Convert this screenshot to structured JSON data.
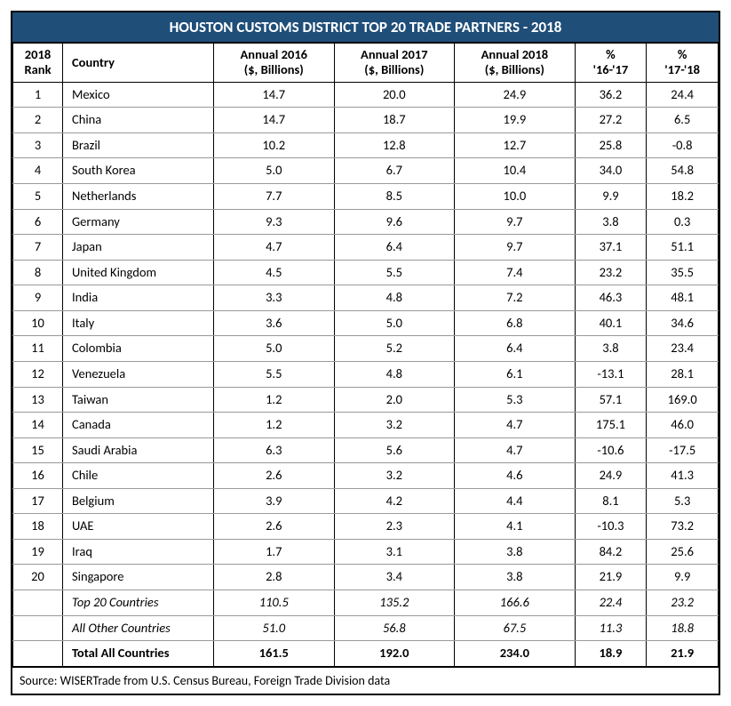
{
  "title": "HOUSTON CUSTOMS DISTRICT TOP 20 TRADE PARTNERS - 2018",
  "columns": {
    "rank_l1": "2018",
    "rank_l2": "Rank",
    "country": "Country",
    "a2016_l1": "Annual 2016",
    "a2016_l2": "($, Billions)",
    "a2017_l1": "Annual 2017",
    "a2017_l2": "($, Billions)",
    "a2018_l1": "Annual 2018",
    "a2018_l2": "($, Billions)",
    "pct1617_l1": "%",
    "pct1617_l2": "'16-'17",
    "pct1718_l1": "%",
    "pct1718_l2": "'17-'18"
  },
  "rows": [
    {
      "rank": "1",
      "country": "Mexico",
      "a16": "14.7",
      "a17": "20.0",
      "a18": "24.9",
      "p1": "36.2",
      "p2": "24.4"
    },
    {
      "rank": "2",
      "country": "China",
      "a16": "14.7",
      "a17": "18.7",
      "a18": "19.9",
      "p1": "27.2",
      "p2": "6.5"
    },
    {
      "rank": "3",
      "country": "Brazil",
      "a16": "10.2",
      "a17": "12.8",
      "a18": "12.7",
      "p1": "25.8",
      "p2": "-0.8"
    },
    {
      "rank": "4",
      "country": "South Korea",
      "a16": "5.0",
      "a17": "6.7",
      "a18": "10.4",
      "p1": "34.0",
      "p2": "54.8"
    },
    {
      "rank": "5",
      "country": "Netherlands",
      "a16": "7.7",
      "a17": "8.5",
      "a18": "10.0",
      "p1": "9.9",
      "p2": "18.2"
    },
    {
      "rank": "6",
      "country": "Germany",
      "a16": "9.3",
      "a17": "9.6",
      "a18": "9.7",
      "p1": "3.8",
      "p2": "0.3"
    },
    {
      "rank": "7",
      "country": "Japan",
      "a16": "4.7",
      "a17": "6.4",
      "a18": "9.7",
      "p1": "37.1",
      "p2": "51.1"
    },
    {
      "rank": "8",
      "country": "United Kingdom",
      "a16": "4.5",
      "a17": "5.5",
      "a18": "7.4",
      "p1": "23.2",
      "p2": "35.5"
    },
    {
      "rank": "9",
      "country": "India",
      "a16": "3.3",
      "a17": "4.8",
      "a18": "7.2",
      "p1": "46.3",
      "p2": "48.1"
    },
    {
      "rank": "10",
      "country": "Italy",
      "a16": "3.6",
      "a17": "5.0",
      "a18": "6.8",
      "p1": "40.1",
      "p2": "34.6"
    },
    {
      "rank": "11",
      "country": "Colombia",
      "a16": "5.0",
      "a17": "5.2",
      "a18": "6.4",
      "p1": "3.8",
      "p2": "23.4"
    },
    {
      "rank": "12",
      "country": "Venezuela",
      "a16": "5.5",
      "a17": "4.8",
      "a18": "6.1",
      "p1": "-13.1",
      "p2": "28.1"
    },
    {
      "rank": "13",
      "country": "Taiwan",
      "a16": "1.2",
      "a17": "2.0",
      "a18": "5.3",
      "p1": "57.1",
      "p2": "169.0"
    },
    {
      "rank": "14",
      "country": "Canada",
      "a16": "1.2",
      "a17": "3.2",
      "a18": "4.7",
      "p1": "175.1",
      "p2": "46.0"
    },
    {
      "rank": "15",
      "country": "Saudi Arabia",
      "a16": "6.3",
      "a17": "5.6",
      "a18": "4.7",
      "p1": "-10.6",
      "p2": "-17.5"
    },
    {
      "rank": "16",
      "country": "Chile",
      "a16": "2.6",
      "a17": "3.2",
      "a18": "4.6",
      "p1": "24.9",
      "p2": "41.3"
    },
    {
      "rank": "17",
      "country": "Belgium",
      "a16": "3.9",
      "a17": "4.2",
      "a18": "4.4",
      "p1": "8.1",
      "p2": "5.3"
    },
    {
      "rank": "18",
      "country": "UAE",
      "a16": "2.6",
      "a17": "2.3",
      "a18": "4.1",
      "p1": "-10.3",
      "p2": "73.2"
    },
    {
      "rank": "19",
      "country": "Iraq",
      "a16": "1.7",
      "a17": "3.1",
      "a18": "3.8",
      "p1": "84.2",
      "p2": "25.6"
    },
    {
      "rank": "20",
      "country": "Singapore",
      "a16": "2.8",
      "a17": "3.4",
      "a18": "3.8",
      "p1": "21.9",
      "p2": "9.9"
    }
  ],
  "summary": [
    {
      "label": "Top 20 Countries",
      "a16": "110.5",
      "a17": "135.2",
      "a18": "166.6",
      "p1": "22.4",
      "p2": "23.2"
    },
    {
      "label": "All Other Countries",
      "a16": "51.0",
      "a17": "56.8",
      "a18": "67.5",
      "p1": "11.3",
      "p2": "18.8"
    }
  ],
  "total": {
    "label": "Total All Countries",
    "a16": "161.5",
    "a17": "192.0",
    "a18": "234.0",
    "p1": "18.9",
    "p2": "21.9"
  },
  "source": "Source:  WISERTrade from U.S. Census Bureau, Foreign Trade Division data",
  "style": {
    "title_bg": "#1f4e79",
    "title_color": "#ffffff",
    "border_color": "#000000",
    "row_border": "#999999",
    "font": "Calibri, Arial, sans-serif",
    "body_fontsize": 14.5,
    "title_fontsize": 17
  }
}
